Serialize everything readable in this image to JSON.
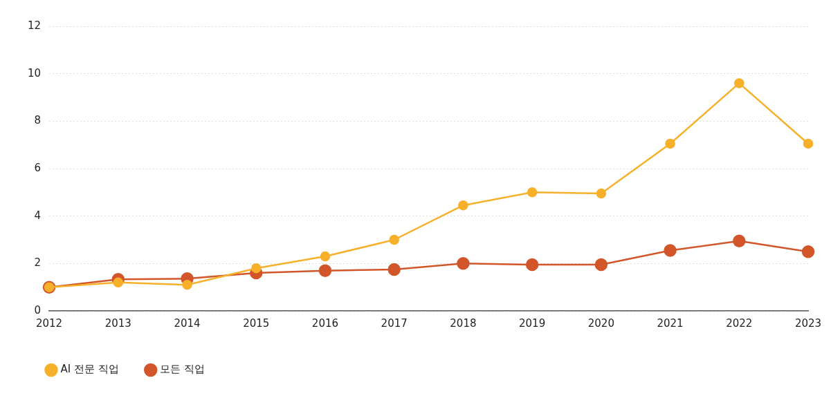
{
  "chart_data": {
    "type": "line",
    "categories": [
      "2012",
      "2013",
      "2014",
      "2015",
      "2016",
      "2017",
      "2018",
      "2019",
      "2020",
      "2021",
      "2022",
      "2023"
    ],
    "series": [
      {
        "name": "AI 전문 직업",
        "color": "#f6b02a",
        "values": [
          1.0,
          1.2,
          1.1,
          1.8,
          2.3,
          3.0,
          4.45,
          5.0,
          4.95,
          7.05,
          9.6,
          7.05
        ]
      },
      {
        "name": "모든 직업",
        "color": "#d2562a",
        "values": [
          1.0,
          1.33,
          1.36,
          1.6,
          1.7,
          1.75,
          2.0,
          1.95,
          1.95,
          2.55,
          2.95,
          2.5
        ]
      }
    ],
    "ylim": [
      0,
      12
    ],
    "yticks": [
      0,
      2,
      4,
      6,
      8,
      10,
      12
    ],
    "grid": "y",
    "legend": "bottom left",
    "marker": "circle",
    "line_style": "solid"
  }
}
